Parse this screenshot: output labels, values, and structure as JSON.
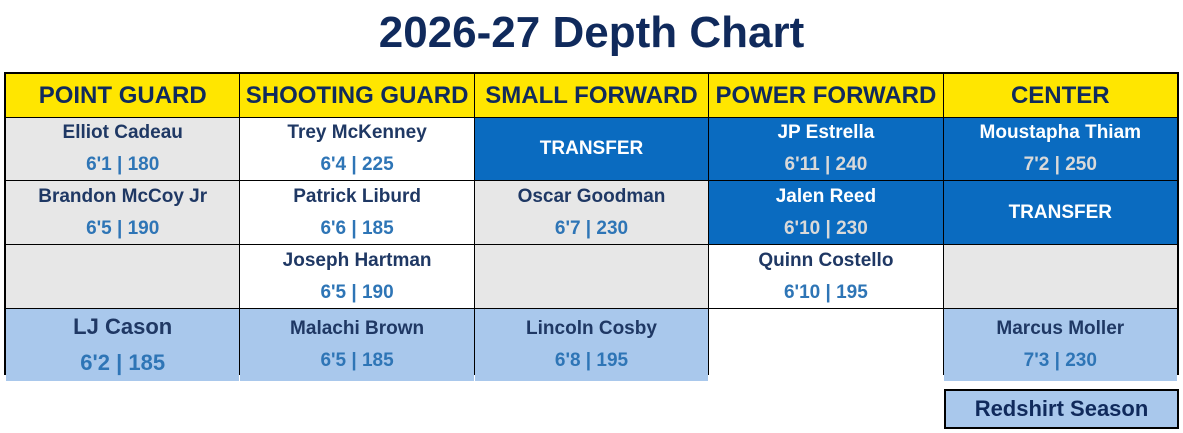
{
  "title": "2026-27 Depth Chart",
  "columns": [
    "POINT GUARD",
    "SHOOTING GUARD",
    "SMALL FORWARD",
    "POWER FORWARD",
    "CENTER"
  ],
  "rows": [
    [
      {
        "name": "Elliot Cadeau",
        "stats": "6'1 | 180",
        "style": "grey"
      },
      {
        "name": "Trey McKenney",
        "stats": "6'4 | 225",
        "style": "white"
      },
      {
        "name": "TRANSFER",
        "style": "transfer"
      },
      {
        "name": "JP Estrella",
        "stats": "6'11 | 240",
        "style": "blue"
      },
      {
        "name": "Moustapha Thiam",
        "stats": "7'2 | 250",
        "style": "blue"
      }
    ],
    [
      {
        "name": "Brandon McCoy Jr",
        "stats": "6'5 | 190",
        "style": "grey"
      },
      {
        "name": "Patrick Liburd",
        "stats": "6'6 | 185",
        "style": "white"
      },
      {
        "name": "Oscar Goodman",
        "stats": "6'7 | 230",
        "style": "grey"
      },
      {
        "name": "Jalen Reed",
        "stats": "6'10 | 230",
        "style": "blue"
      },
      {
        "name": "TRANSFER",
        "style": "transfer"
      }
    ],
    [
      {
        "style": "grey"
      },
      {
        "name": "Joseph Hartman",
        "stats": "6'5 | 190",
        "style": "white"
      },
      {
        "style": "grey"
      },
      {
        "name": "Quinn Costello",
        "stats": "6'10 | 195",
        "style": "white"
      },
      {
        "style": "grey"
      }
    ],
    [
      {
        "name": "LJ Cason",
        "stats": "6'2 | 185",
        "style": "lightblue",
        "size": "large"
      },
      {
        "name": "Malachi Brown",
        "stats": "6'5 | 185",
        "style": "lightblue"
      },
      {
        "name": "Lincoln Cosby",
        "stats": "6'8 | 195",
        "style": "lightblue"
      },
      {
        "style": "white"
      },
      {
        "name": "Marcus Moller",
        "stats": "7'3 | 230",
        "style": "lightblue"
      }
    ]
  ],
  "legend": {
    "label": "Redshirt Season"
  }
}
